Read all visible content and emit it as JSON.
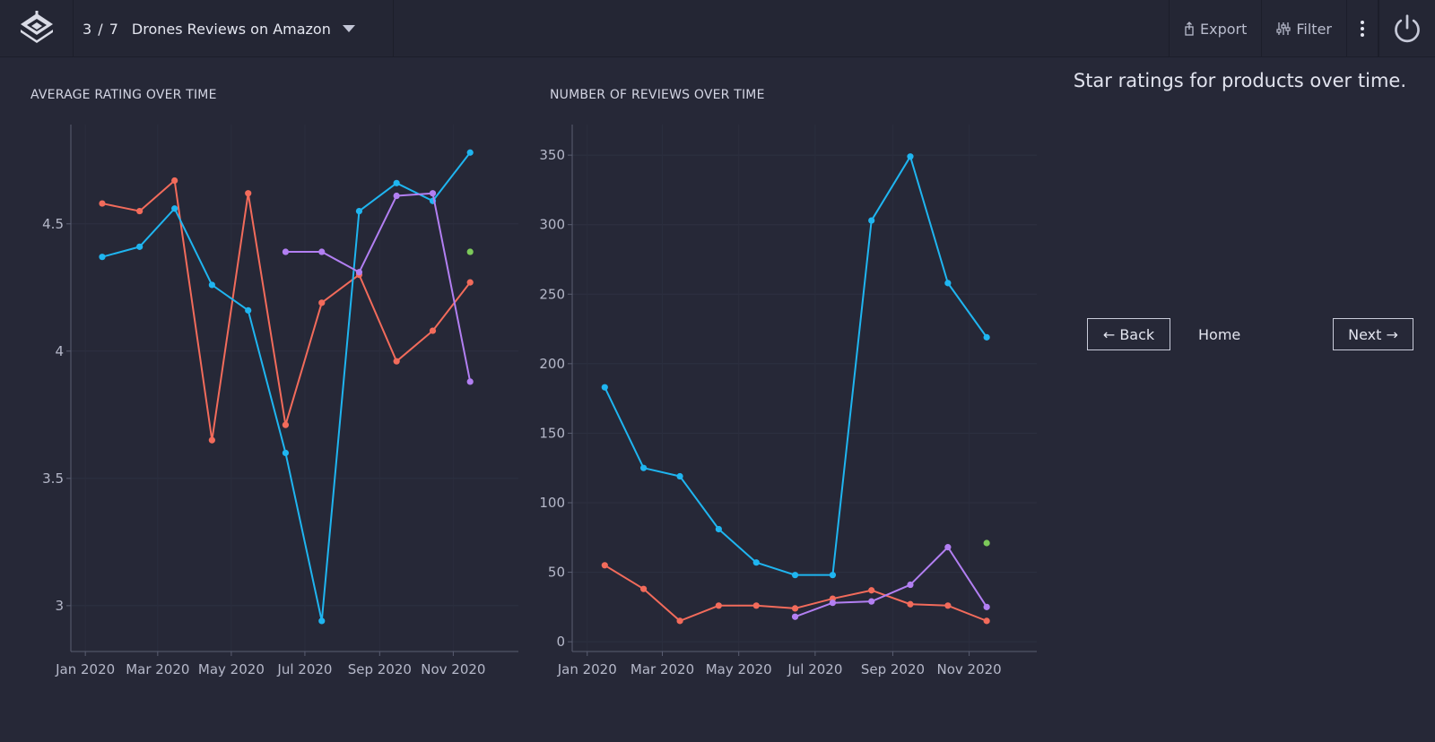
{
  "header": {
    "counter": "3 / 7",
    "title": "Drones Reviews on Amazon",
    "export_label": "Export",
    "filter_label": "Filter"
  },
  "sidebar": {
    "description": "Star ratings for products over time.",
    "back_label": "← Back",
    "home_label": "Home",
    "next_label": "Next →"
  },
  "colors": {
    "series_blue": "#1fb5f0",
    "series_red": "#f26b5b",
    "series_purple": "#b27ff2",
    "series_green": "#7cc95a"
  },
  "chart_data": [
    {
      "type": "line",
      "title": "AVERAGE RATING OVER TIME",
      "xlabel": "",
      "ylabel": "",
      "x_ticks": [
        "Jan 2020",
        "Mar 2020",
        "May 2020",
        "Jul 2020",
        "Sep 2020",
        "Nov 2020"
      ],
      "y_ticks": [
        "3",
        "3.5",
        "4",
        "4.5"
      ],
      "y_tick_values": [
        3,
        3.5,
        4,
        4.5
      ],
      "x_tick_values": [
        "2020-01-01",
        "2020-03-01",
        "2020-05-01",
        "2020-07-01",
        "2020-09-01",
        "2020-11-01"
      ],
      "xlim": [
        "2019-12-20",
        "2020-12-25"
      ],
      "ylim": [
        2.82,
        4.89
      ],
      "grid": true,
      "series": [
        {
          "color": "#f26b5b",
          "x": [
            "2020-01-15",
            "2020-02-15",
            "2020-03-15",
            "2020-04-15",
            "2020-05-15",
            "2020-06-15",
            "2020-07-15",
            "2020-08-15",
            "2020-09-15",
            "2020-10-15",
            "2020-11-15"
          ],
          "y": [
            4.58,
            4.55,
            4.67,
            3.65,
            4.62,
            3.71,
            4.19,
            4.3,
            3.96,
            4.08,
            4.27
          ]
        },
        {
          "color": "#1fb5f0",
          "x": [
            "2020-01-15",
            "2020-02-15",
            "2020-03-15",
            "2020-04-15",
            "2020-05-15",
            "2020-06-15",
            "2020-07-15",
            "2020-08-15",
            "2020-09-15",
            "2020-10-15",
            "2020-11-15"
          ],
          "y": [
            4.37,
            4.41,
            4.56,
            4.26,
            4.16,
            3.6,
            2.94,
            4.55,
            4.66,
            4.59,
            4.78
          ]
        },
        {
          "color": "#b27ff2",
          "x": [
            "2020-06-15",
            "2020-07-15",
            "2020-08-15",
            "2020-09-15",
            "2020-10-15",
            "2020-11-15"
          ],
          "y": [
            4.39,
            4.39,
            4.31,
            4.61,
            4.62,
            3.88
          ]
        },
        {
          "color": "#7cc95a",
          "x": [
            "2020-11-15"
          ],
          "y": [
            4.39
          ]
        }
      ]
    },
    {
      "type": "line",
      "title": "NUMBER OF REVIEWS OVER TIME",
      "xlabel": "",
      "ylabel": "",
      "x_ticks": [
        "Jan 2020",
        "Mar 2020",
        "May 2020",
        "Jul 2020",
        "Sep 2020",
        "Nov 2020"
      ],
      "y_ticks": [
        "0",
        "50",
        "100",
        "150",
        "200",
        "250",
        "300",
        "350"
      ],
      "y_tick_values": [
        0,
        50,
        100,
        150,
        200,
        250,
        300,
        350
      ],
      "x_tick_values": [
        "2020-01-01",
        "2020-03-01",
        "2020-05-01",
        "2020-07-01",
        "2020-09-01",
        "2020-11-01"
      ],
      "xlim": [
        "2019-12-20",
        "2020-12-25"
      ],
      "ylim": [
        -7,
        372
      ],
      "grid": true,
      "series": [
        {
          "color": "#1fb5f0",
          "x": [
            "2020-01-15",
            "2020-02-15",
            "2020-03-15",
            "2020-04-15",
            "2020-05-15",
            "2020-06-15",
            "2020-07-15",
            "2020-08-15",
            "2020-09-15",
            "2020-10-15",
            "2020-11-15"
          ],
          "y": [
            183,
            125,
            119,
            81,
            57,
            48,
            48,
            303,
            349,
            258,
            219
          ]
        },
        {
          "color": "#f26b5b",
          "x": [
            "2020-01-15",
            "2020-02-15",
            "2020-03-15",
            "2020-04-15",
            "2020-05-15",
            "2020-06-15",
            "2020-07-15",
            "2020-08-15",
            "2020-09-15",
            "2020-10-15",
            "2020-11-15"
          ],
          "y": [
            55,
            38,
            15,
            26,
            26,
            24,
            31,
            37,
            27,
            26,
            15
          ]
        },
        {
          "color": "#b27ff2",
          "x": [
            "2020-06-15",
            "2020-07-15",
            "2020-08-15",
            "2020-09-15",
            "2020-10-15",
            "2020-11-15"
          ],
          "y": [
            18,
            28,
            29,
            41,
            68,
            25
          ]
        },
        {
          "color": "#7cc95a",
          "x": [
            "2020-11-15"
          ],
          "y": [
            71
          ]
        }
      ]
    }
  ]
}
